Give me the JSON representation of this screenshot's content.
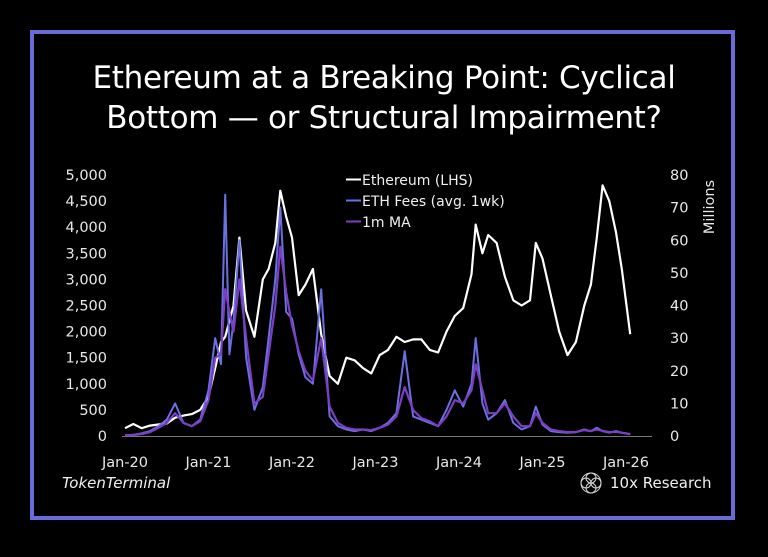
{
  "title": {
    "line1": "Ethereum at a Breaking Point: Cyclical",
    "line2": "Bottom — or Structural Impairment?"
  },
  "colors": {
    "frame": "#6a6ad8",
    "background": "#000000",
    "ethereum": "#ffffff",
    "fees": "#6b6fe0",
    "ma": "#7b3fc4",
    "axis": "#777777"
  },
  "source_label": "TokenTerminal",
  "brand": {
    "label": "10x Research",
    "icon": "10x-research-logo-icon"
  },
  "chart_data": {
    "type": "line",
    "title": "Ethereum at a Breaking Point: Cyclical Bottom — or Structural Impairment?",
    "xlabel": "",
    "ylabel_left": "",
    "ylabel_right": "Millions",
    "x_ticks": [
      "Jan-20",
      "Jan-21",
      "Jan-22",
      "Jan-23",
      "Jan-24",
      "Jan-25",
      "Jan-26"
    ],
    "y_left_ticks": [
      "0",
      "500",
      "1,000",
      "1,500",
      "2,000",
      "2,500",
      "3,000",
      "3,500",
      "4,000",
      "4,500",
      "5,000"
    ],
    "y_right_ticks": [
      "0",
      "10",
      "20",
      "30",
      "40",
      "50",
      "60",
      "70",
      "80"
    ],
    "ylim_left": [
      0,
      5000
    ],
    "ylim_right": [
      0,
      80
    ],
    "grid": false,
    "legend_position": "top-center",
    "legend": [
      "Ethereum (LHS)",
      "ETH Fees (avg. 1wk)",
      "1m MA"
    ],
    "x": [
      2020.0,
      2020.1,
      2020.2,
      2020.3,
      2020.4,
      2020.5,
      2020.6,
      2020.7,
      2020.8,
      2020.9,
      2021.0,
      2021.08,
      2021.15,
      2021.2,
      2021.25,
      2021.3,
      2021.37,
      2021.45,
      2021.55,
      2021.65,
      2021.72,
      2021.8,
      2021.86,
      2021.93,
      2022.0,
      2022.08,
      2022.16,
      2022.25,
      2022.35,
      2022.45,
      2022.55,
      2022.65,
      2022.75,
      2022.85,
      2022.95,
      2023.05,
      2023.15,
      2023.25,
      2023.35,
      2023.45,
      2023.55,
      2023.65,
      2023.75,
      2023.85,
      2023.95,
      2024.05,
      2024.15,
      2024.2,
      2024.28,
      2024.35,
      2024.45,
      2024.55,
      2024.65,
      2024.75,
      2024.85,
      2024.92,
      2025.0,
      2025.1,
      2025.2,
      2025.3,
      2025.4,
      2025.5,
      2025.58,
      2025.65,
      2025.72,
      2025.8,
      2025.88,
      2025.95,
      2026.05
    ],
    "series": [
      {
        "name": "Ethereum (LHS)",
        "axis": "left",
        "values": [
          150,
          230,
          150,
          200,
          220,
          240,
          350,
          390,
          420,
          500,
          750,
          1300,
          1800,
          1900,
          2200,
          2500,
          3800,
          2400,
          1900,
          3000,
          3200,
          3700,
          4700,
          4200,
          3800,
          2700,
          2900,
          3200,
          1950,
          1150,
          1000,
          1500,
          1450,
          1300,
          1200,
          1550,
          1650,
          1900,
          1800,
          1850,
          1850,
          1650,
          1600,
          2000,
          2300,
          2450,
          3100,
          4050,
          3500,
          3850,
          3700,
          3050,
          2600,
          2500,
          2600,
          3700,
          3400,
          2700,
          2000,
          1550,
          1800,
          2500,
          2900,
          3800,
          4800,
          4500,
          3900,
          3200,
          1950
        ]
      },
      {
        "name": "ETH Fees (avg. 1wk)",
        "axis": "right",
        "unit": "Millions",
        "values": [
          0.2,
          0.4,
          0.8,
          1.5,
          3,
          5,
          10,
          4,
          3,
          5,
          14,
          30,
          22,
          74,
          25,
          35,
          60,
          24,
          8,
          15,
          30,
          48,
          70,
          38,
          36,
          25,
          18,
          16,
          45,
          6,
          3,
          2,
          1.5,
          2,
          1.5,
          2.5,
          4,
          7,
          26,
          6,
          5,
          4,
          3,
          8,
          14,
          9,
          16,
          30,
          10,
          5,
          7,
          11,
          4,
          2,
          3,
          9,
          3.5,
          1.5,
          1.2,
          1,
          1.2,
          2,
          1.5,
          2.5,
          1.5,
          1,
          1.5,
          1,
          0.5
        ]
      },
      {
        "name": "1m MA",
        "axis": "right",
        "unit": "Millions",
        "values": [
          0.2,
          0.3,
          0.6,
          1.2,
          2.5,
          4,
          7,
          4,
          3,
          4.5,
          11,
          24,
          25,
          45,
          38,
          32,
          48,
          30,
          10,
          12,
          25,
          40,
          58,
          44,
          34,
          26,
          20,
          17,
          30,
          9,
          4,
          2.5,
          2,
          2,
          1.8,
          2.5,
          3.5,
          6,
          15,
          8,
          5.5,
          4.5,
          3,
          6,
          11,
          10,
          14,
          22,
          14,
          7,
          7,
          10,
          6,
          3,
          3,
          7,
          4,
          2,
          1.5,
          1.2,
          1.2,
          1.8,
          1.5,
          2,
          1.6,
          1.2,
          1.3,
          1,
          0.6
        ]
      }
    ]
  }
}
